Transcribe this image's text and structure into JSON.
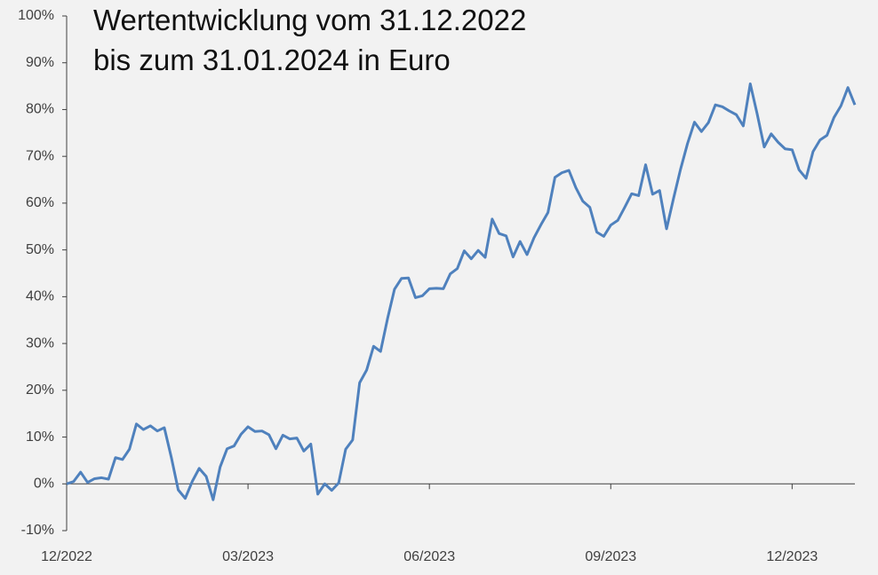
{
  "chart_data": {
    "type": "line",
    "title": [
      "Wertentwicklung vom 31.12.2022",
      "bis zum 31.01.2024 in Euro"
    ],
    "categories": [
      "12/2022",
      null,
      null,
      null,
      null,
      null,
      null,
      null,
      null,
      null,
      null,
      null,
      null,
      null,
      null,
      null,
      null,
      null,
      null,
      null,
      null,
      null,
      null,
      null,
      null,
      null,
      "03/2023",
      null,
      null,
      null,
      null,
      null,
      null,
      null,
      null,
      null,
      null,
      null,
      null,
      null,
      null,
      null,
      null,
      null,
      null,
      null,
      null,
      null,
      null,
      null,
      null,
      null,
      "06/2023",
      null,
      null,
      null,
      null,
      null,
      null,
      null,
      null,
      null,
      null,
      null,
      null,
      null,
      null,
      null,
      null,
      null,
      null,
      null,
      null,
      null,
      null,
      null,
      null,
      null,
      "09/2023",
      null,
      null,
      null,
      null,
      null,
      null,
      null,
      null,
      null,
      null,
      null,
      null,
      null,
      null,
      null,
      null,
      null,
      null,
      null,
      null,
      null,
      null,
      null,
      null,
      null,
      "12/2023",
      null,
      null,
      null,
      null,
      null,
      null,
      null,
      null,
      null
    ],
    "series": [
      {
        "color": "#4f81bd",
        "values": [
          0,
          0.5,
          2.5,
          0.3,
          1.1,
          1.3,
          1.0,
          5.6,
          5.2,
          7.4,
          12.8,
          11.6,
          12.4,
          11.3,
          12.0,
          5.7,
          -1.3,
          -3.1,
          0.5,
          3.3,
          1.6,
          -3.4,
          3.6,
          7.5,
          8.1,
          10.6,
          12.2,
          11.2,
          11.3,
          10.5,
          7.5,
          10.4,
          9.6,
          9.8,
          7.0,
          8.5,
          -2.2,
          0,
          -1.4,
          0.2,
          7.4,
          9.4,
          21.6,
          24.3,
          29.4,
          28.3,
          35.3,
          41.6,
          43.9,
          44,
          39.8,
          40.2,
          41.7,
          41.8,
          41.7,
          44.9,
          46,
          49.8,
          48.1,
          49.9,
          48.4,
          56.6,
          53.5,
          53,
          48.5,
          51.8,
          49,
          52.6,
          55.4,
          58,
          65.5,
          66.5,
          67,
          63.3,
          60.4,
          59.1,
          53.8,
          52.9,
          55.3,
          56.3,
          59.1,
          62,
          61.6,
          68.2,
          61.9,
          62.7,
          54.5,
          61,
          67.2,
          72.7,
          77.3,
          75.3,
          77.2,
          81,
          80.6,
          79.7,
          78.9,
          76.5,
          85.5,
          79,
          72,
          74.8,
          73,
          71.6,
          71.4,
          67.1,
          65.3,
          71,
          73.5,
          74.5,
          78.3,
          80.8,
          84.7,
          81
        ]
      }
    ],
    "ylim": [
      -10,
      100
    ],
    "yticks": [
      {
        "value": -10,
        "label": "-10%"
      },
      {
        "value": 0,
        "label": "0%"
      },
      {
        "value": 10,
        "label": "10%"
      },
      {
        "value": 20,
        "label": "20%"
      },
      {
        "value": 30,
        "label": "30%"
      },
      {
        "value": 40,
        "label": "40%"
      },
      {
        "value": 50,
        "label": "50%"
      },
      {
        "value": 60,
        "label": "60%"
      },
      {
        "value": 70,
        "label": "70%"
      },
      {
        "value": 80,
        "label": "80%"
      },
      {
        "value": 90,
        "label": "90%"
      },
      {
        "value": 100,
        "label": "100%"
      }
    ],
    "grid": false
  }
}
